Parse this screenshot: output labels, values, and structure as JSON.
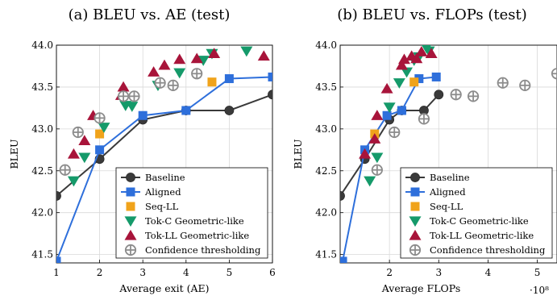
{
  "chart_data": [
    {
      "type": "scatter",
      "title": "(a) BLEU vs. AE (test)",
      "xlabel": "Average exit (AE)",
      "ylabel": "BLEU",
      "xlim": [
        1,
        6
      ],
      "ylim": [
        41.4,
        44.0
      ],
      "xticks": [
        "1",
        "2",
        "3",
        "4",
        "5",
        "6"
      ],
      "yticks": [
        "41.5",
        "42.0",
        "42.5",
        "43.0",
        "43.5",
        "44.0"
      ],
      "x_multiplier": "",
      "grid": true,
      "legend_position": "bottom-right",
      "series": [
        {
          "name": "Baseline",
          "marker": "circle",
          "line": true,
          "color": "#3a3a3a",
          "points": [
            [
              1.0,
              42.2
            ],
            [
              2.0,
              42.64
            ],
            [
              3.0,
              43.11
            ],
            [
              4.0,
              43.22
            ],
            [
              5.0,
              43.22
            ],
            [
              6.0,
              43.41
            ]
          ]
        },
        {
          "name": "Aligned",
          "marker": "square",
          "line": true,
          "color": "#2e6fdb",
          "points": [
            [
              1.0,
              41.42
            ],
            [
              2.0,
              42.75
            ],
            [
              3.0,
              43.16
            ],
            [
              4.0,
              43.22
            ],
            [
              5.0,
              43.6
            ],
            [
              6.0,
              43.62
            ]
          ]
        },
        {
          "name": "Seq-LL",
          "marker": "square-small",
          "line": false,
          "color": "#f0a31b",
          "points": [
            [
              2.0,
              42.94
            ],
            [
              4.6,
              43.56
            ]
          ]
        },
        {
          "name": "Tok-C Geometric-like",
          "marker": "triangle-down",
          "line": false,
          "color": "#159a6a",
          "points": [
            [
              1.4,
              42.38
            ],
            [
              1.65,
              42.66
            ],
            [
              2.1,
              43.02
            ],
            [
              2.6,
              43.28
            ],
            [
              2.75,
              43.27
            ],
            [
              3.35,
              43.52
            ],
            [
              3.85,
              43.67
            ],
            [
              4.4,
              43.82
            ],
            [
              4.6,
              43.9
            ],
            [
              5.4,
              43.93
            ]
          ]
        },
        {
          "name": "Tok-LL Geometric-like",
          "marker": "triangle-up",
          "line": false,
          "color": "#a8143a",
          "points": [
            [
              1.4,
              42.7
            ],
            [
              1.65,
              42.86
            ],
            [
              1.85,
              43.16
            ],
            [
              2.5,
              43.4
            ],
            [
              2.55,
              43.5
            ],
            [
              3.25,
              43.68
            ],
            [
              3.5,
              43.76
            ],
            [
              3.85,
              43.83
            ],
            [
              4.25,
              43.84
            ],
            [
              4.65,
              43.9
            ],
            [
              5.8,
              43.87
            ]
          ]
        },
        {
          "name": "Confidence thresholding",
          "marker": "circle-plus",
          "line": false,
          "color": "#8c8c8c",
          "points": [
            [
              1.2,
              42.51
            ],
            [
              1.5,
              42.96
            ],
            [
              2.0,
              43.13
            ],
            [
              2.55,
              43.39
            ],
            [
              2.8,
              43.39
            ],
            [
              3.4,
              43.55
            ],
            [
              3.7,
              43.52
            ],
            [
              4.25,
              43.66
            ]
          ]
        }
      ]
    },
    {
      "type": "scatter",
      "title": "(b) BLEU vs. FLOPs (test)",
      "xlabel": "Average FLOPs",
      "ylabel": "BLEU",
      "xlim": [
        1.0,
        5.4
      ],
      "ylim": [
        41.4,
        44.0
      ],
      "xticks": [
        "2",
        "3",
        "4",
        "5"
      ],
      "yticks": [
        "41.5",
        "42.0",
        "42.5",
        "43.0",
        "43.5",
        "44.0"
      ],
      "x_multiplier": "·10⁸",
      "grid": true,
      "legend_position": "bottom-right",
      "series": [
        {
          "name": "Baseline",
          "marker": "circle",
          "line": true,
          "color": "#3a3a3a",
          "points": [
            [
              1.0,
              42.2
            ],
            [
              1.5,
              42.64
            ],
            [
              2.0,
              43.11
            ],
            [
              2.25,
              43.22
            ],
            [
              2.7,
              43.22
            ],
            [
              3.0,
              43.41
            ]
          ]
        },
        {
          "name": "Aligned",
          "marker": "square",
          "line": true,
          "color": "#2e6fdb",
          "points": [
            [
              1.05,
              41.42
            ],
            [
              1.5,
              42.75
            ],
            [
              1.95,
              43.16
            ],
            [
              2.25,
              43.22
            ],
            [
              2.6,
              43.6
            ],
            [
              2.95,
              43.62
            ]
          ]
        },
        {
          "name": "Seq-LL",
          "marker": "square-small",
          "line": false,
          "color": "#f0a31b",
          "points": [
            [
              1.7,
              42.94
            ],
            [
              2.5,
              43.56
            ]
          ]
        },
        {
          "name": "Tok-C Geometric-like",
          "marker": "triangle-down",
          "line": false,
          "color": "#159a6a",
          "points": [
            [
              1.6,
              42.38
            ],
            [
              1.75,
              42.66
            ],
            [
              2.0,
              43.26
            ],
            [
              2.2,
              43.55
            ],
            [
              2.35,
              43.68
            ],
            [
              2.5,
              43.82
            ],
            [
              2.6,
              43.86
            ],
            [
              2.75,
              43.97
            ],
            [
              2.8,
              43.93
            ]
          ]
        },
        {
          "name": "Tok-LL Geometric-like",
          "marker": "triangle-up",
          "line": false,
          "color": "#a8143a",
          "points": [
            [
              1.5,
              42.7
            ],
            [
              1.7,
              42.88
            ],
            [
              1.75,
              43.16
            ],
            [
              1.95,
              43.48
            ],
            [
              2.25,
              43.76
            ],
            [
              2.3,
              43.83
            ],
            [
              2.45,
              43.87
            ],
            [
              2.55,
              43.84
            ],
            [
              2.65,
              43.92
            ],
            [
              2.85,
              43.9
            ]
          ]
        },
        {
          "name": "Confidence thresholding",
          "marker": "circle-plus",
          "line": false,
          "color": "#8c8c8c",
          "points": [
            [
              1.75,
              42.51
            ],
            [
              2.1,
              42.96
            ],
            [
              2.7,
              43.12
            ],
            [
              3.35,
              43.41
            ],
            [
              3.7,
              43.39
            ],
            [
              4.3,
              43.55
            ],
            [
              4.75,
              43.52
            ],
            [
              5.4,
              43.66
            ]
          ]
        }
      ]
    }
  ]
}
